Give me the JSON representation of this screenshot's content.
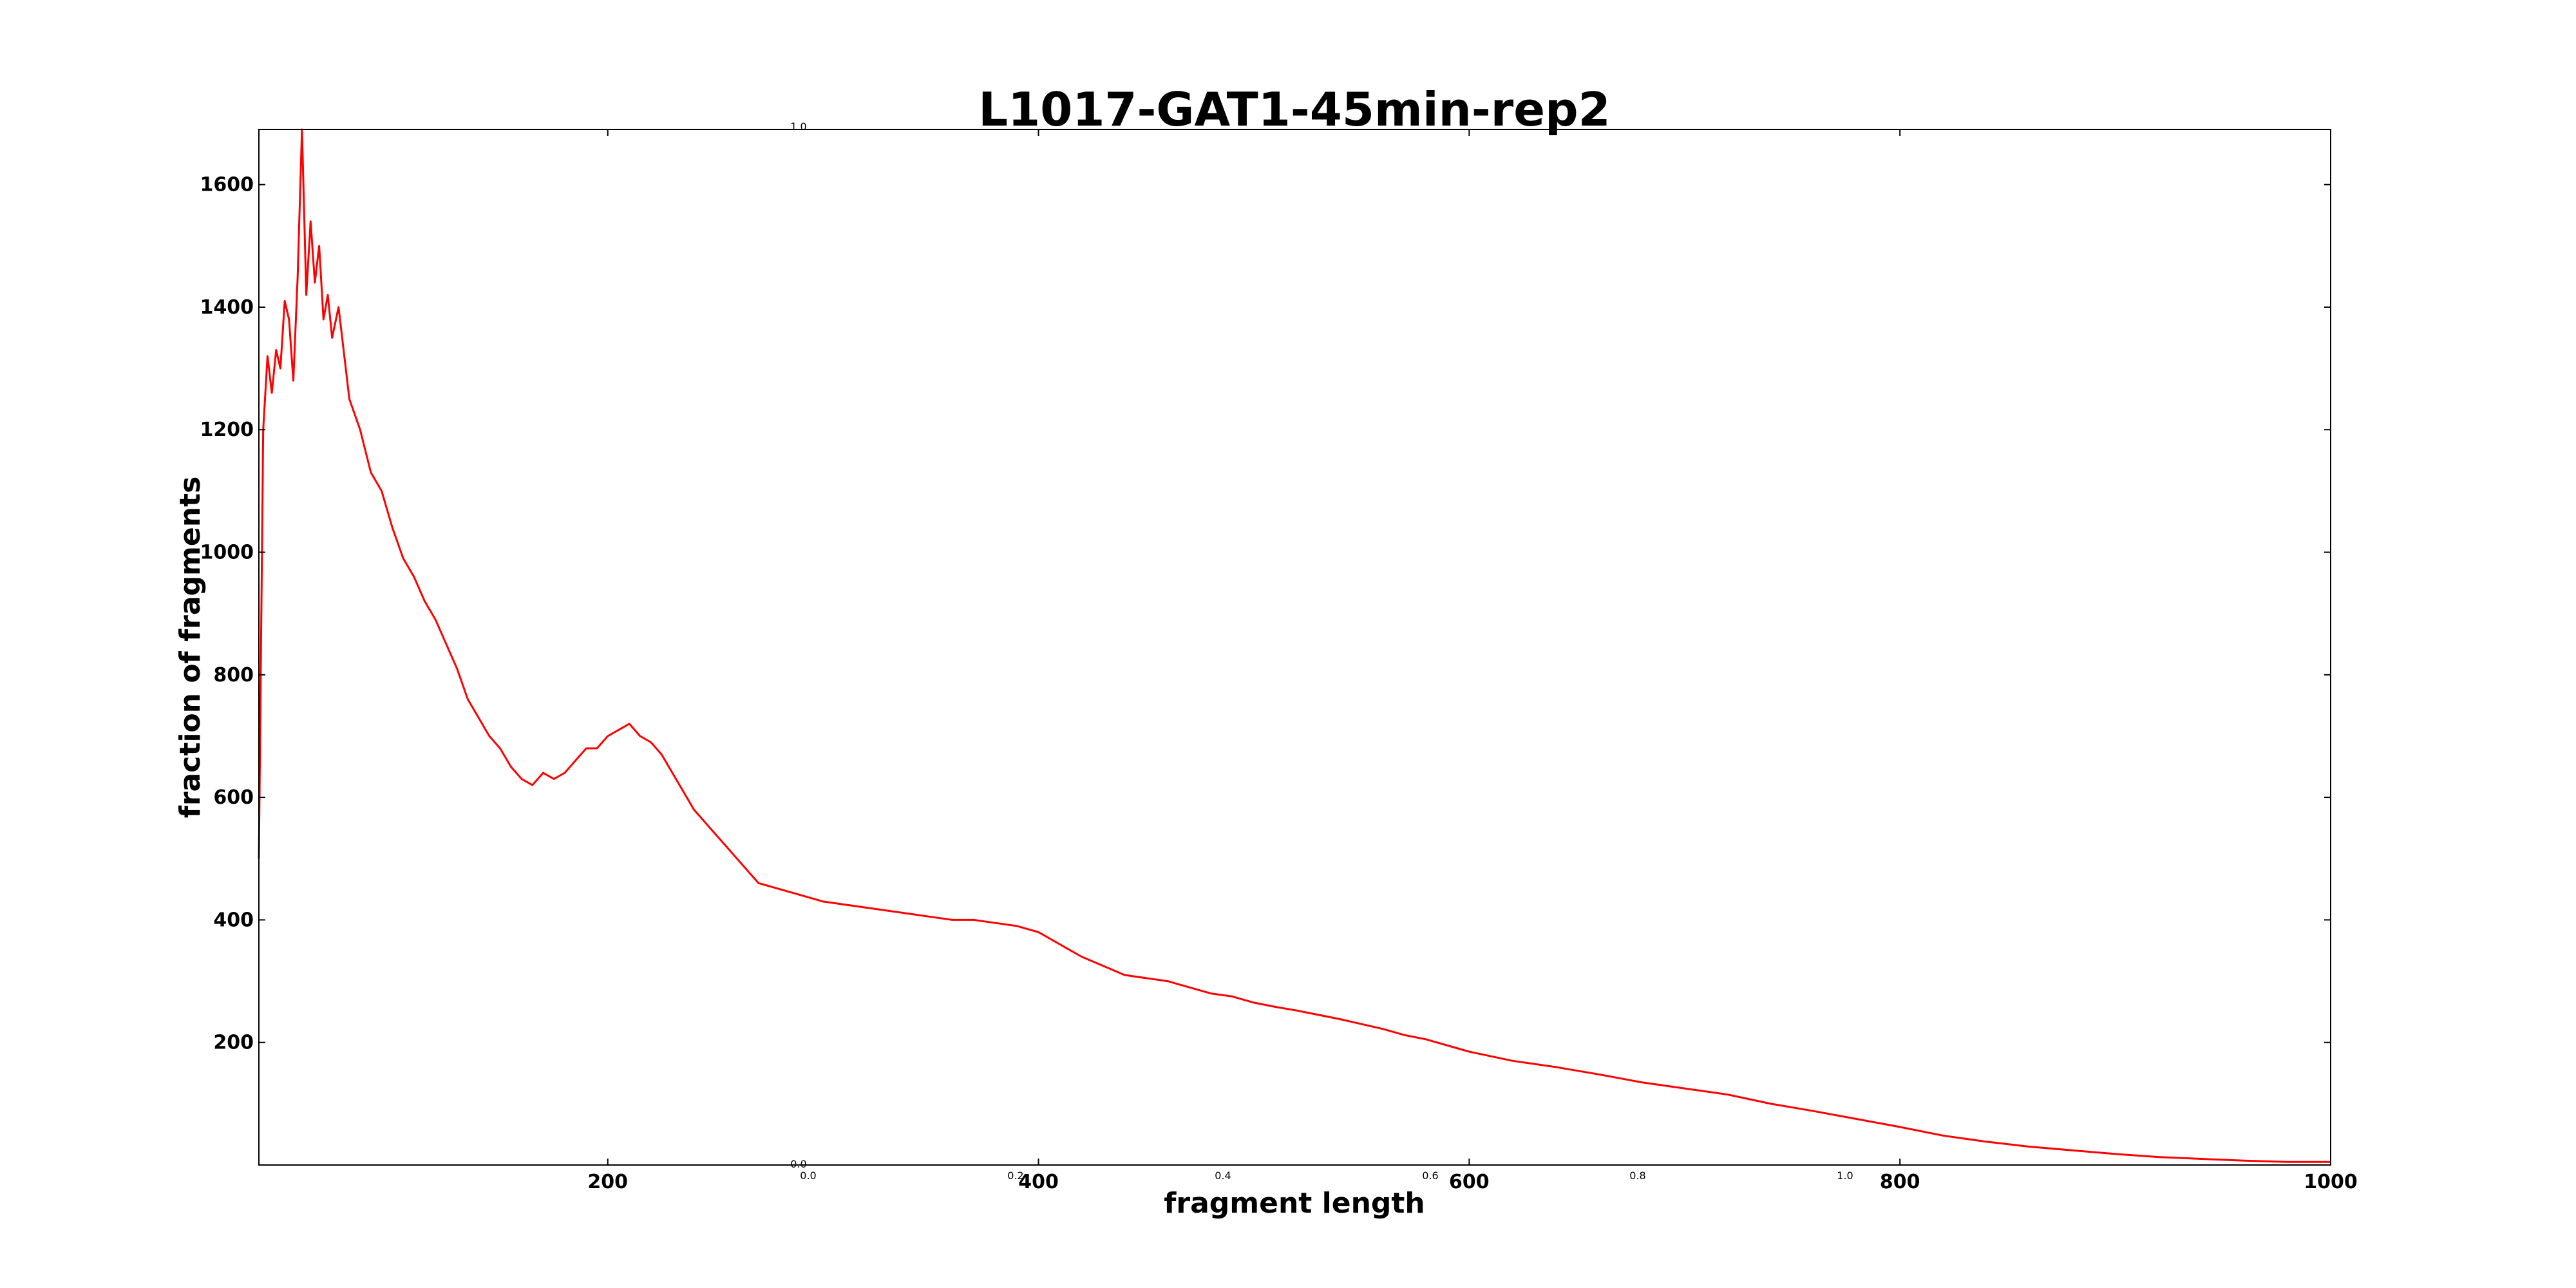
{
  "chart_data": {
    "type": "line",
    "title": "L1017-GAT1-45min-rep2",
    "xlabel": "fragment length",
    "ylabel": "fraction of fragments",
    "xlim": [
      38,
      1000
    ],
    "ylim": [
      0,
      1690
    ],
    "x_ticks": [
      200,
      400,
      600,
      800,
      1000
    ],
    "y_ticks": [
      200,
      400,
      600,
      800,
      1000,
      1200,
      1400,
      1600
    ],
    "grid": false,
    "legend": "none",
    "line_color": "#ff0000",
    "series": [
      {
        "x": [
          38,
          40,
          42,
          44,
          46,
          48,
          50,
          52,
          54,
          56,
          58,
          60,
          62,
          64,
          66,
          68,
          70,
          72,
          75,
          80,
          85,
          90,
          95,
          100,
          105,
          110,
          115,
          120,
          125,
          130,
          135,
          140,
          145,
          150,
          155,
          160,
          165,
          170,
          175,
          180,
          185,
          190,
          195,
          200,
          205,
          210,
          215,
          220,
          225,
          230,
          235,
          240,
          245,
          250,
          255,
          260,
          265,
          270,
          280,
          290,
          300,
          310,
          320,
          330,
          340,
          350,
          360,
          370,
          380,
          390,
          400,
          410,
          420,
          430,
          440,
          450,
          460,
          470,
          480,
          490,
          500,
          510,
          520,
          530,
          540,
          550,
          560,
          570,
          580,
          590,
          600,
          620,
          640,
          660,
          680,
          700,
          720,
          740,
          760,
          780,
          800,
          820,
          840,
          860,
          880,
          900,
          920,
          940,
          960,
          980,
          1000
        ],
        "y": [
          500,
          1200,
          1320,
          1260,
          1330,
          1300,
          1410,
          1380,
          1280,
          1450,
          1690,
          1420,
          1540,
          1440,
          1500,
          1380,
          1420,
          1350,
          1400,
          1250,
          1200,
          1130,
          1100,
          1040,
          990,
          960,
          920,
          890,
          850,
          810,
          760,
          730,
          700,
          680,
          650,
          630,
          620,
          640,
          630,
          640,
          660,
          680,
          680,
          700,
          710,
          720,
          700,
          690,
          670,
          640,
          610,
          580,
          560,
          540,
          520,
          500,
          480,
          460,
          450,
          440,
          430,
          425,
          420,
          415,
          410,
          405,
          400,
          400,
          395,
          390,
          380,
          360,
          340,
          325,
          310,
          305,
          300,
          290,
          280,
          275,
          265,
          258,
          252,
          245,
          238,
          230,
          222,
          212,
          205,
          195,
          185,
          170,
          160,
          148,
          135,
          125,
          115,
          100,
          88,
          75,
          62,
          48,
          38,
          30,
          24,
          18,
          13,
          10,
          7,
          5,
          5
        ]
      }
    ]
  },
  "ghost_axes": {
    "x_ticks": [
      "0.0",
      "0.2",
      "0.4",
      "0.6",
      "0.8",
      "1.0"
    ],
    "y_top": "1.0",
    "y_bottom": "0.0"
  }
}
